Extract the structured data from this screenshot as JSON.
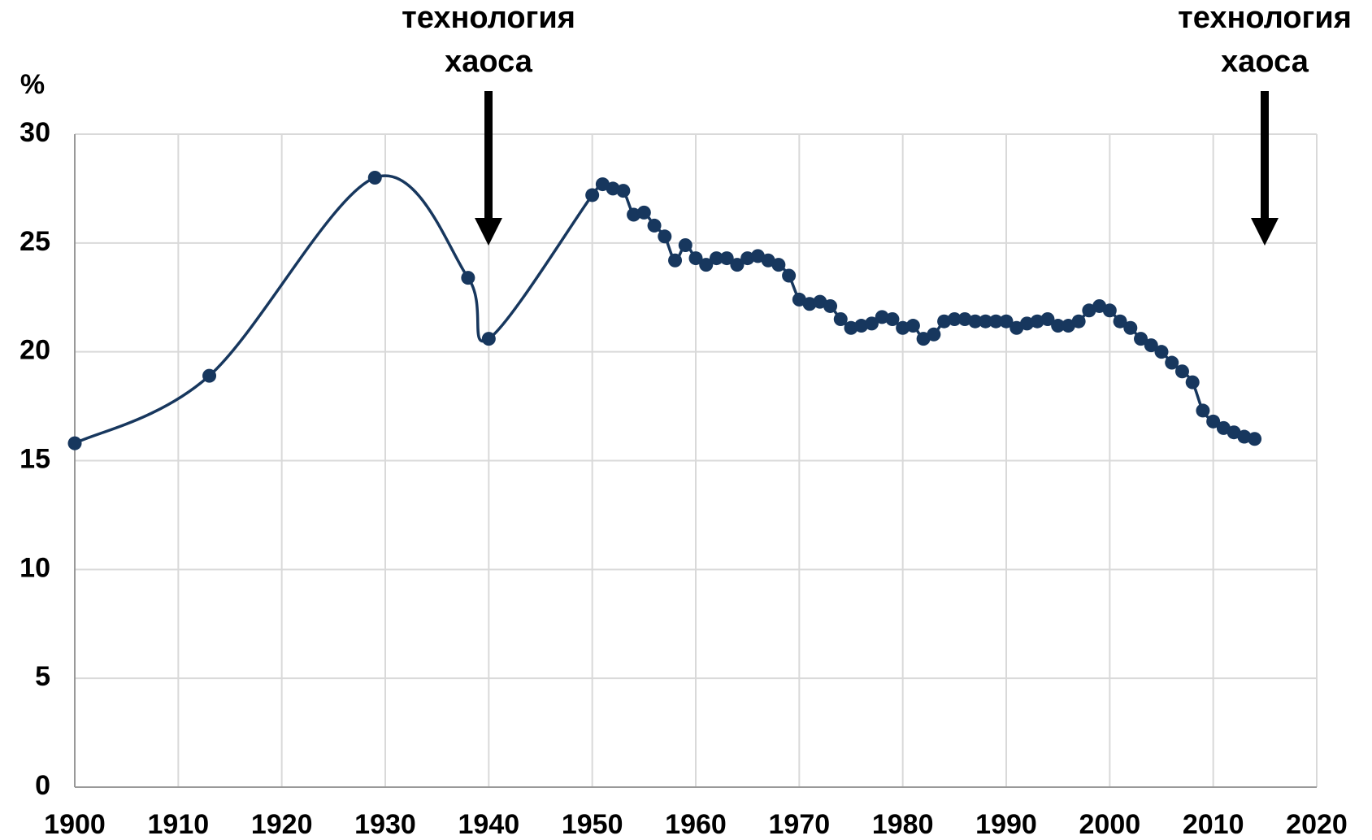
{
  "chart_data": {
    "type": "line",
    "y_label": "%",
    "annotations": [
      [
        "технология",
        "хаоса"
      ],
      [
        "технология",
        "хаоса"
      ]
    ],
    "x": [
      1900,
      1913,
      1929,
      1938,
      1940,
      1950,
      1951,
      1952,
      1953,
      1954,
      1955,
      1956,
      1957,
      1958,
      1959,
      1960,
      1961,
      1962,
      1963,
      1964,
      1965,
      1966,
      1967,
      1968,
      1969,
      1970,
      1971,
      1972,
      1973,
      1974,
      1975,
      1976,
      1977,
      1978,
      1979,
      1980,
      1981,
      1982,
      1983,
      1984,
      1985,
      1986,
      1987,
      1988,
      1989,
      1990,
      1991,
      1992,
      1993,
      1994,
      1995,
      1996,
      1997,
      1998,
      1999,
      2000,
      2001,
      2002,
      2003,
      2004,
      2005,
      2006,
      2007,
      2008,
      2009,
      2010,
      2011,
      2012,
      2013,
      2014
    ],
    "series": [
      {
        "color": "#17375e",
        "values": [
          15.8,
          18.9,
          28.0,
          23.4,
          20.6,
          27.2,
          27.7,
          27.5,
          27.4,
          26.3,
          26.4,
          25.8,
          25.3,
          24.2,
          24.9,
          24.3,
          24.0,
          24.3,
          24.3,
          24.0,
          24.3,
          24.4,
          24.2,
          24.0,
          23.5,
          22.4,
          22.2,
          22.3,
          22.1,
          21.5,
          21.1,
          21.2,
          21.3,
          21.6,
          21.5,
          21.1,
          21.2,
          20.6,
          20.8,
          21.4,
          21.5,
          21.5,
          21.4,
          21.4,
          21.4,
          21.4,
          21.1,
          21.3,
          21.4,
          21.5,
          21.2,
          21.2,
          21.4,
          21.9,
          22.1,
          21.9,
          21.4,
          21.1,
          20.6,
          20.3,
          20.0,
          19.5,
          19.1,
          18.6,
          17.3,
          16.8,
          16.5,
          16.3,
          16.1,
          16.0
        ]
      }
    ],
    "xlim": [
      1900,
      2020
    ],
    "xticks": [
      1900,
      1910,
      1920,
      1930,
      1940,
      1950,
      1960,
      1970,
      1980,
      1990,
      2000,
      2010,
      2020
    ],
    "ylim": [
      0,
      30
    ],
    "yticks": [
      0,
      5,
      10,
      15,
      20,
      25,
      30
    ],
    "grid": true,
    "smooth": true
  }
}
